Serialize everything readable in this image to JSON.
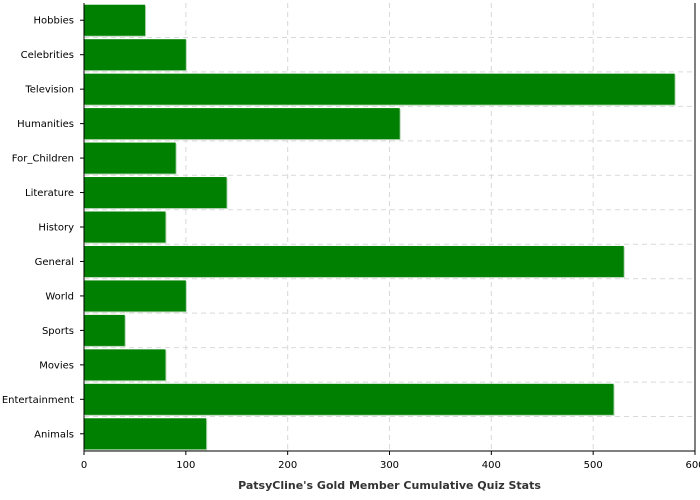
{
  "chart_data": {
    "type": "bar",
    "orientation": "horizontal",
    "title": "",
    "xlabel": "PatsyCline's Gold Member Cumulative Quiz Stats",
    "ylabel": "",
    "xlim": [
      0,
      600
    ],
    "xticks": [
      0,
      100,
      200,
      300,
      400,
      500,
      600
    ],
    "grid": true,
    "legend": "none",
    "categories": [
      "Hobbies",
      "Celebrities",
      "Television",
      "Humanities",
      "For_Children",
      "Literature",
      "History",
      "General",
      "World",
      "Sports",
      "Movies",
      "Entertainment",
      "Animals"
    ],
    "values": [
      60,
      100,
      580,
      310,
      90,
      140,
      80,
      530,
      100,
      40,
      80,
      520,
      120
    ],
    "colors": {
      "bar": "#008000",
      "bar_shadow": "#b7d7b7"
    }
  }
}
